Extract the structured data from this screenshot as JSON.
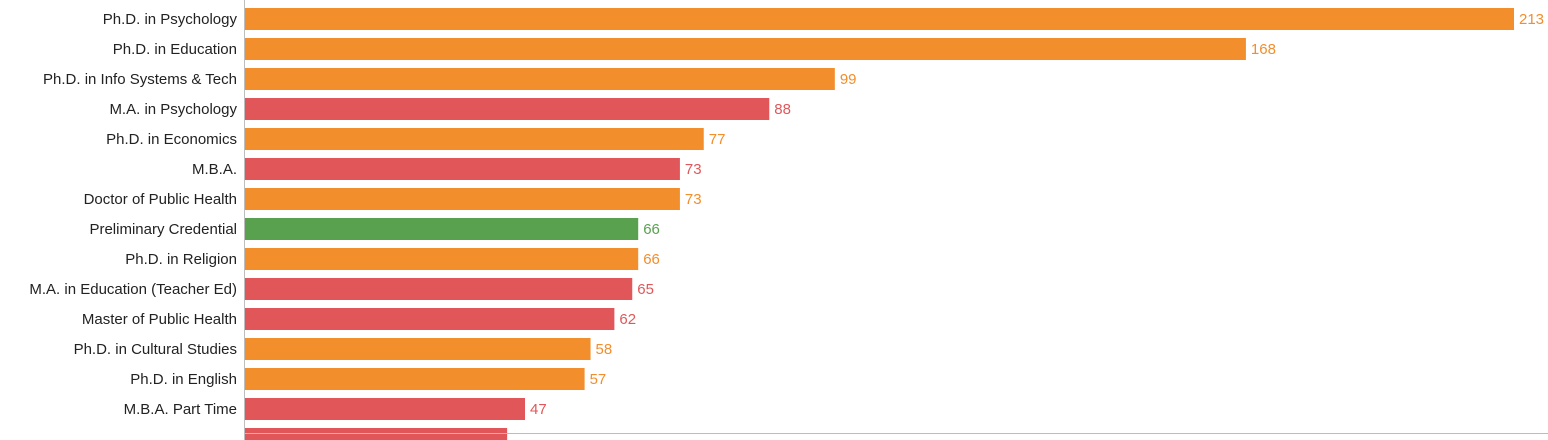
{
  "chart_data": {
    "type": "bar",
    "orientation": "horizontal",
    "title": "",
    "xlabel": "",
    "ylabel": "",
    "grid": false,
    "xlim": [
      0,
      213
    ],
    "categories": [
      "Ph.D. in Psychology",
      "Ph.D. in Education",
      "Ph.D. in Info Systems & Tech",
      "M.A. in Psychology",
      "Ph.D. in Economics",
      "M.B.A.",
      "Doctor of Public Health",
      "Preliminary Credential",
      "Ph.D. in Religion",
      "M.A. in Education (Teacher Ed)",
      "Master of Public Health",
      "Ph.D. in Cultural Studies",
      "Ph.D. in English",
      "M.B.A. Part Time",
      ""
    ],
    "values": [
      213,
      168,
      99,
      88,
      77,
      73,
      73,
      66,
      66,
      65,
      62,
      58,
      57,
      47,
      44
    ],
    "colors": [
      "#f28e2b",
      "#f28e2b",
      "#f28e2b",
      "#e15759",
      "#f28e2b",
      "#e15759",
      "#f28e2b",
      "#59a14f",
      "#f28e2b",
      "#e15759",
      "#e15759",
      "#f28e2b",
      "#f28e2b",
      "#e15759",
      "#e15759"
    ],
    "value_labels": [
      "213",
      "168",
      "99",
      "88",
      "77",
      "73",
      "73",
      "66",
      "66",
      "65",
      "62",
      "58",
      "57",
      "47",
      ""
    ]
  }
}
